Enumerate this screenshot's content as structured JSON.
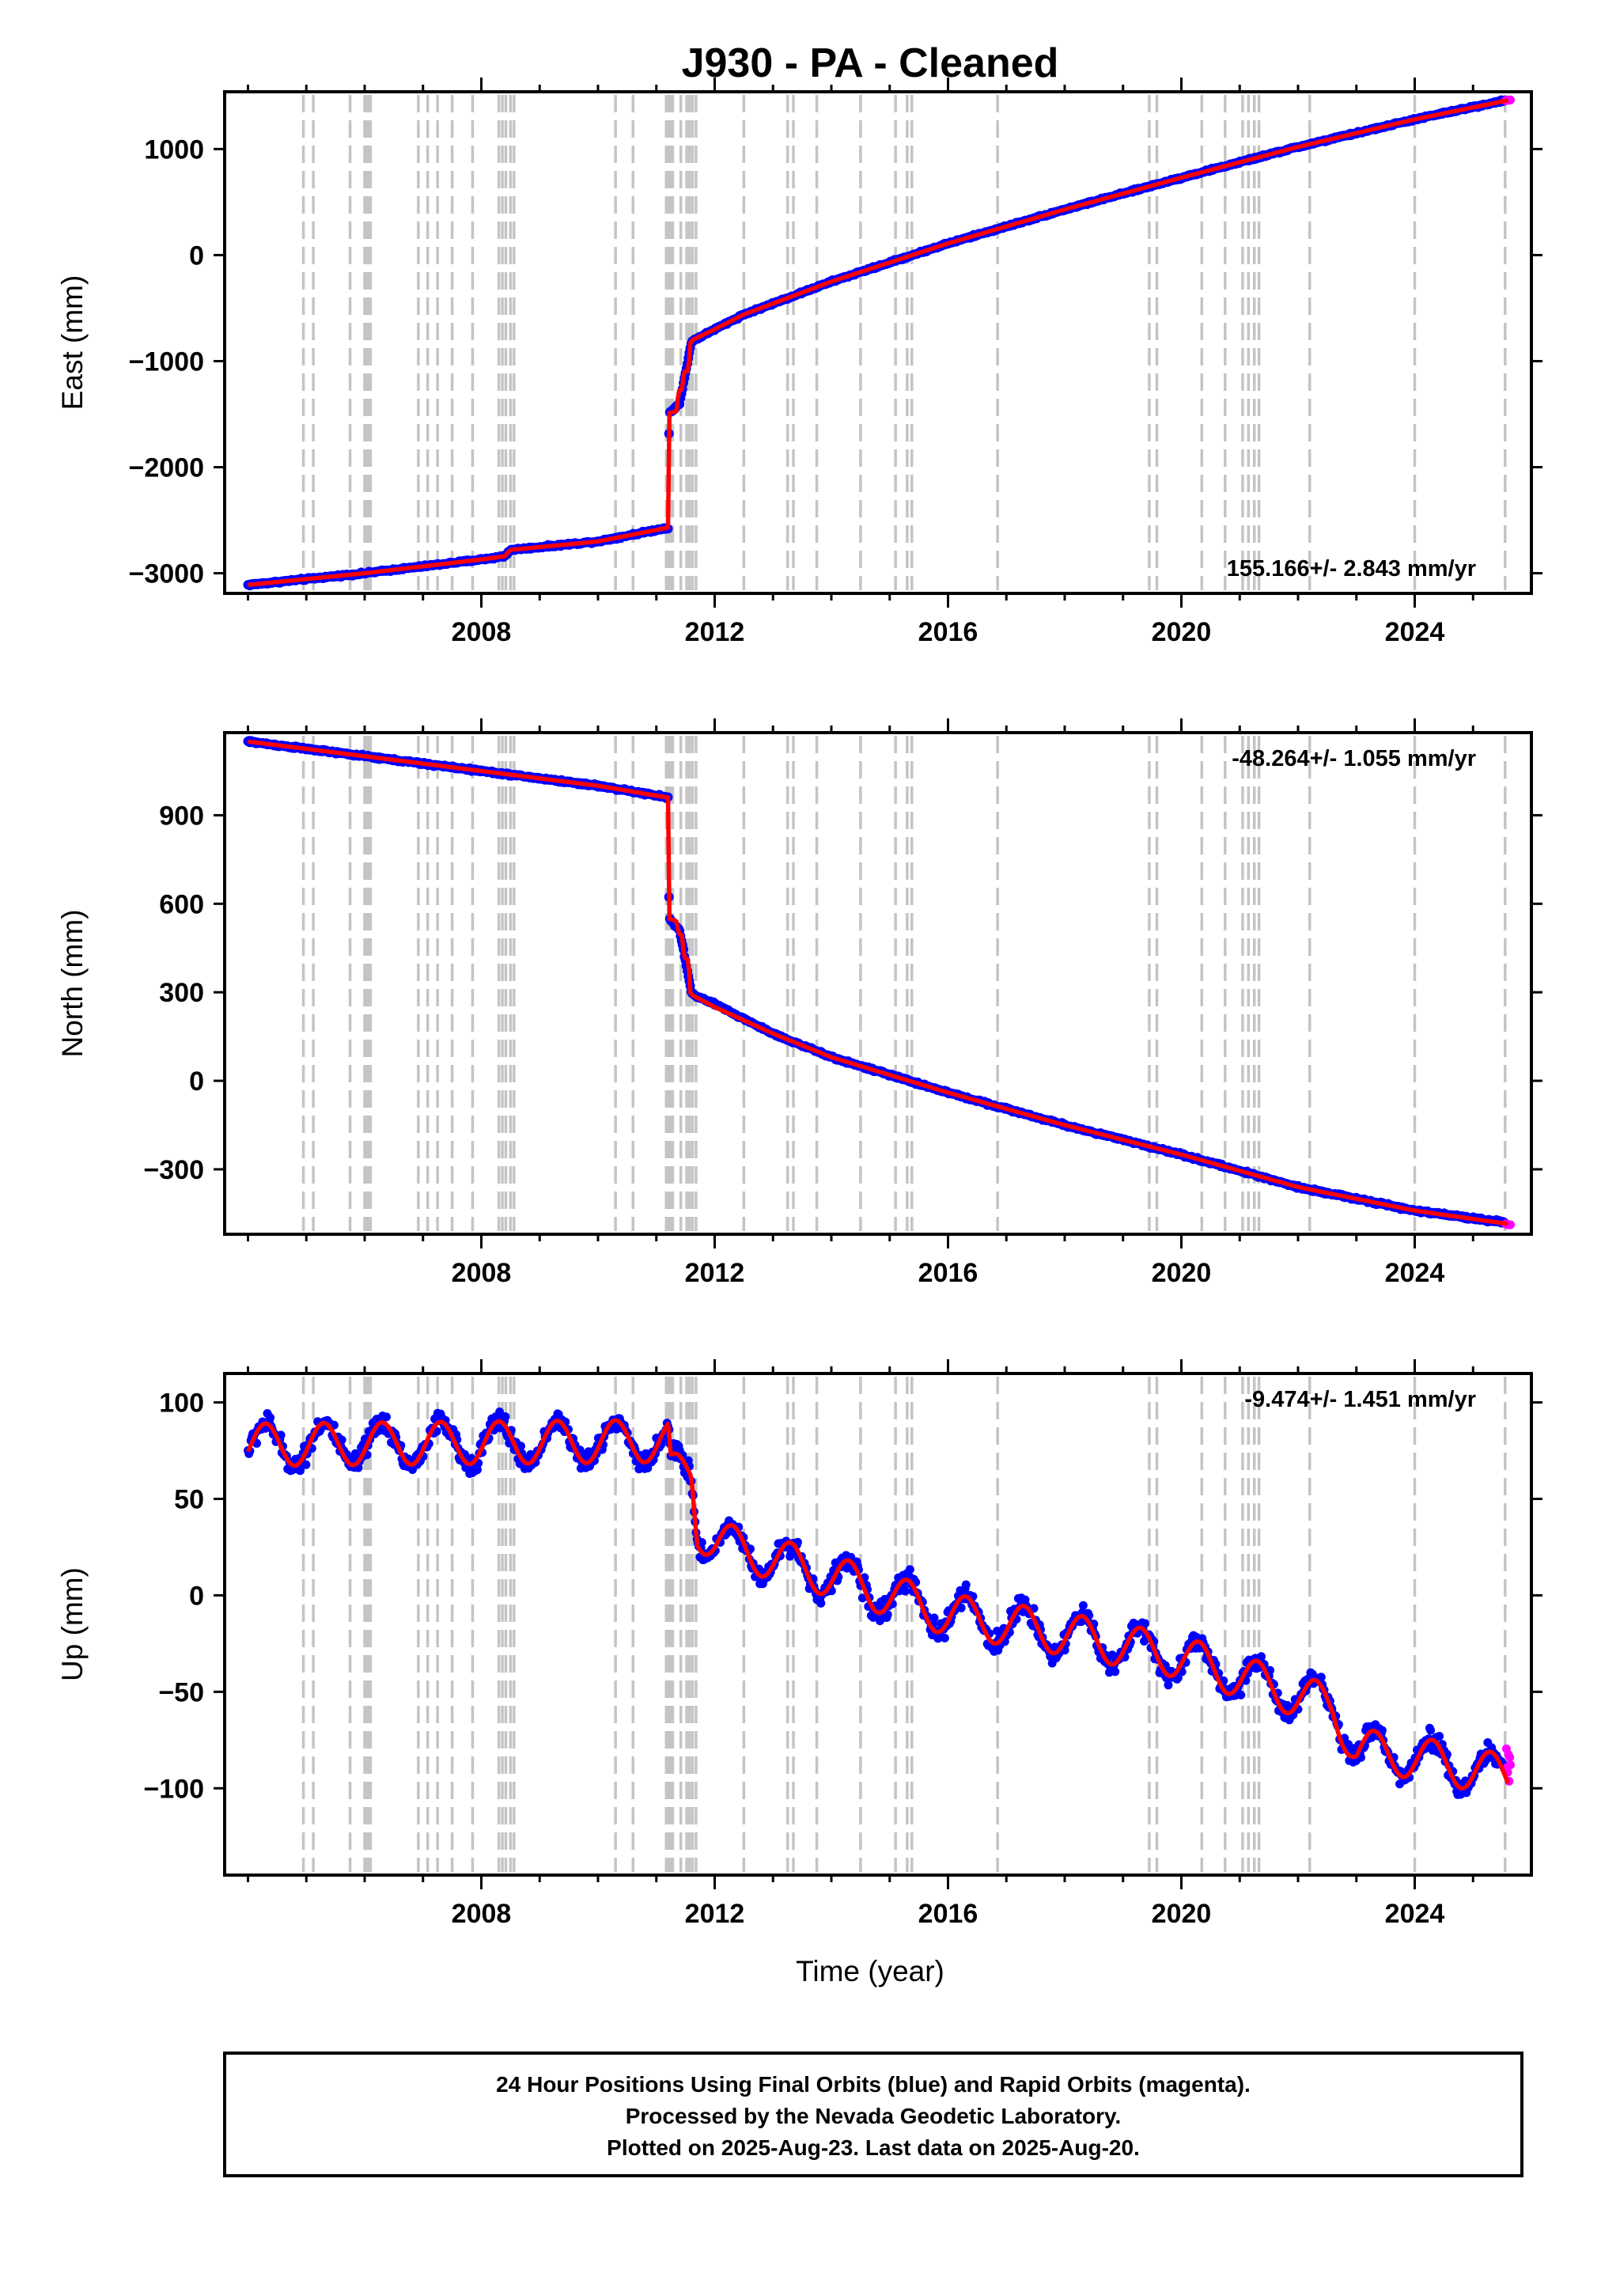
{
  "page": {
    "footer": {
      "lines": [
        "24 Hour Positions Using Final Orbits (blue) and Rapid Orbits (magenta).",
        "Processed by the Nevada Geodetic Laboratory.",
        "Plotted on 2025-Aug-23. Last data on 2025-Aug-20."
      ]
    }
  },
  "chart_data": [
    {
      "type": "scatter",
      "title": "J930  - PA - Cleaned",
      "xlabel": "",
      "ylabel": "East (mm)",
      "xlim": [
        2003.6,
        2026.0
      ],
      "ylim": [
        -3190,
        1540
      ],
      "x_ticks": [
        2008,
        2012,
        2016,
        2020,
        2024
      ],
      "y_ticks": [
        -3000,
        -2000,
        -1000,
        0,
        1000
      ],
      "y_tick_labels": [
        "−3000",
        "−2000",
        "−1000",
        "0",
        "1000"
      ],
      "rate_label": "155.166+/- 2.843 mm/yr",
      "rate_position": "bottom-right",
      "colors": {
        "final": "#0000ff",
        "rapid": "#ff00ff",
        "model": "#ff0000",
        "steps": "#c4c4c4"
      },
      "series": [
        {
          "kind": "final",
          "shape": "trend",
          "x": [
            2004.0,
            2006.0,
            2008.0,
            2008.4,
            2008.5,
            2010.0,
            2011.2,
            2011.22,
            2011.4,
            2011.6,
            2011.65,
            2012.0,
            2012.5,
            2014.0,
            2016.0,
            2018.0,
            2020.0,
            2022.0,
            2024.0,
            2025.55
          ],
          "y": [
            -3110,
            -3000,
            -2870,
            -2840,
            -2780,
            -2700,
            -2570,
            -1490,
            -1400,
            -820,
            -800,
            -700,
            -560,
            -250,
            110,
            430,
            730,
            1020,
            1280,
            1460
          ],
          "noise": 14
        },
        {
          "kind": "rapid",
          "shape": "trend",
          "x": [
            2025.56,
            2025.64
          ],
          "y": [
            1458,
            1462
          ],
          "noise": 4
        },
        {
          "kind": "model",
          "shape": "trend",
          "x": [
            2004.0,
            2006.0,
            2008.0,
            2008.4,
            2008.5,
            2010.0,
            2011.2,
            2011.22,
            2011.35,
            2011.38,
            2011.45,
            2011.47,
            2011.55,
            2011.58,
            2011.62,
            2012.0,
            2012.5,
            2014.0,
            2016.0,
            2018.0,
            2020.0,
            2022.0,
            2024.0,
            2025.6
          ],
          "y": [
            -3110,
            -3000,
            -2870,
            -2840,
            -2780,
            -2700,
            -2570,
            -1490,
            -1470,
            -1280,
            -1260,
            -1100,
            -1090,
            -830,
            -800,
            -700,
            -560,
            -250,
            110,
            430,
            730,
            1020,
            1280,
            1460
          ]
        }
      ]
    },
    {
      "type": "scatter",
      "title": "",
      "xlabel": "",
      "ylabel": "North (mm)",
      "xlim": [
        2003.6,
        2026.0
      ],
      "ylim": [
        -520,
        1180
      ],
      "x_ticks": [
        2008,
        2012,
        2016,
        2020,
        2024
      ],
      "y_ticks": [
        -300,
        0,
        300,
        600,
        900
      ],
      "y_tick_labels": [
        "−300",
        "0",
        "300",
        "600",
        "900"
      ],
      "rate_label": "-48.264+/- 1.055 mm/yr",
      "rate_position": "top-right",
      "colors": {
        "final": "#0000ff",
        "rapid": "#ff00ff",
        "model": "#ff0000",
        "steps": "#c4c4c4"
      },
      "series": [
        {
          "kind": "final",
          "shape": "trend",
          "x": [
            2004.0,
            2006.0,
            2008.0,
            2010.0,
            2011.2,
            2011.22,
            2011.4,
            2011.6,
            2011.65,
            2012.0,
            2013.0,
            2014.0,
            2016.0,
            2018.0,
            2020.0,
            2022.0,
            2024.0,
            2025.55
          ],
          "y": [
            1150,
            1100,
            1050,
            1000,
            960,
            550,
            510,
            300,
            290,
            260,
            160,
            80,
            -40,
            -150,
            -250,
            -360,
            -440,
            -480
          ],
          "noise": 6
        },
        {
          "kind": "rapid",
          "shape": "trend",
          "x": [
            2025.56,
            2025.64
          ],
          "y": [
            -485,
            -488
          ],
          "noise": 2
        },
        {
          "kind": "model",
          "shape": "trend",
          "x": [
            2004.0,
            2006.0,
            2008.0,
            2010.0,
            2011.2,
            2011.22,
            2011.35,
            2011.38,
            2011.45,
            2011.47,
            2011.55,
            2011.58,
            2011.62,
            2012.0,
            2013.0,
            2014.0,
            2016.0,
            2018.0,
            2020.0,
            2022.0,
            2024.0,
            2025.6
          ],
          "y": [
            1150,
            1100,
            1050,
            1000,
            960,
            550,
            540,
            500,
            490,
            420,
            410,
            300,
            290,
            250,
            160,
            80,
            -40,
            -150,
            -250,
            -360,
            -440,
            -485
          ]
        }
      ]
    },
    {
      "type": "scatter",
      "title": "",
      "xlabel": "Time (year)",
      "ylabel": "Up (mm)",
      "xlim": [
        2003.6,
        2026.0
      ],
      "ylim": [
        -145,
        115
      ],
      "x_ticks": [
        2008,
        2012,
        2016,
        2020,
        2024
      ],
      "y_ticks": [
        -100,
        -50,
        0,
        50,
        100
      ],
      "y_tick_labels": [
        "−100",
        "−50",
        "0",
        "50",
        "100"
      ],
      "rate_label": "-9.474+/- 1.451 mm/yr",
      "rate_position": "top-right",
      "colors": {
        "final": "#0000ff",
        "rapid": "#ff00ff",
        "model": "#ff0000",
        "steps": "#c4c4c4"
      },
      "series": [
        {
          "kind": "final",
          "shape": "seasonal",
          "x": [
            2004.0,
            2011.2,
            2011.25,
            2011.6,
            2011.7,
            2012.0,
            2014.0,
            2016.0,
            2018.0,
            2020.0,
            2022.0,
            2022.6,
            2023.0,
            2024.0,
            2025.55
          ],
          "y": [
            78,
            80,
            62,
            65,
            35,
            28,
            10,
            -10,
            -20,
            -32,
            -52,
            -58,
            -80,
            -84,
            -94
          ],
          "amplitude": 11,
          "noise": 8
        },
        {
          "kind": "rapid",
          "shape": "seasonal",
          "x": [
            2025.56,
            2025.64
          ],
          "y": [
            -86,
            -86
          ],
          "amplitude": 0,
          "noise": 11
        },
        {
          "kind": "model",
          "shape": "seasonal",
          "x": [
            2004.0,
            2011.2,
            2011.25,
            2011.6,
            2011.7,
            2012.0,
            2014.0,
            2016.0,
            2018.0,
            2020.0,
            2022.0,
            2022.6,
            2023.0,
            2024.0,
            2025.6
          ],
          "y": [
            78,
            80,
            62,
            65,
            35,
            28,
            10,
            -10,
            -20,
            -32,
            -52,
            -58,
            -80,
            -84,
            -94
          ],
          "amplitude": 11
        }
      ]
    }
  ],
  "equipment_changes": [
    2004.95,
    2005.12,
    2005.75,
    2006.0,
    2006.03,
    2006.07,
    2006.1,
    2006.92,
    2007.08,
    2007.25,
    2007.5,
    2007.85,
    2008.3,
    2008.36,
    2008.42,
    2008.5,
    2008.56,
    2010.3,
    2010.6,
    2011.17,
    2011.2,
    2011.24,
    2011.28,
    2011.42,
    2011.52,
    2011.57,
    2011.62,
    2011.68,
    2012.5,
    2013.25,
    2013.35,
    2013.75,
    2014.5,
    2015.1,
    2015.3,
    2015.38,
    2016.85,
    2019.45,
    2019.58,
    2020.35,
    2020.75,
    2021.05,
    2021.15,
    2021.25,
    2021.33,
    2022.2,
    2024.0,
    2025.55
  ]
}
